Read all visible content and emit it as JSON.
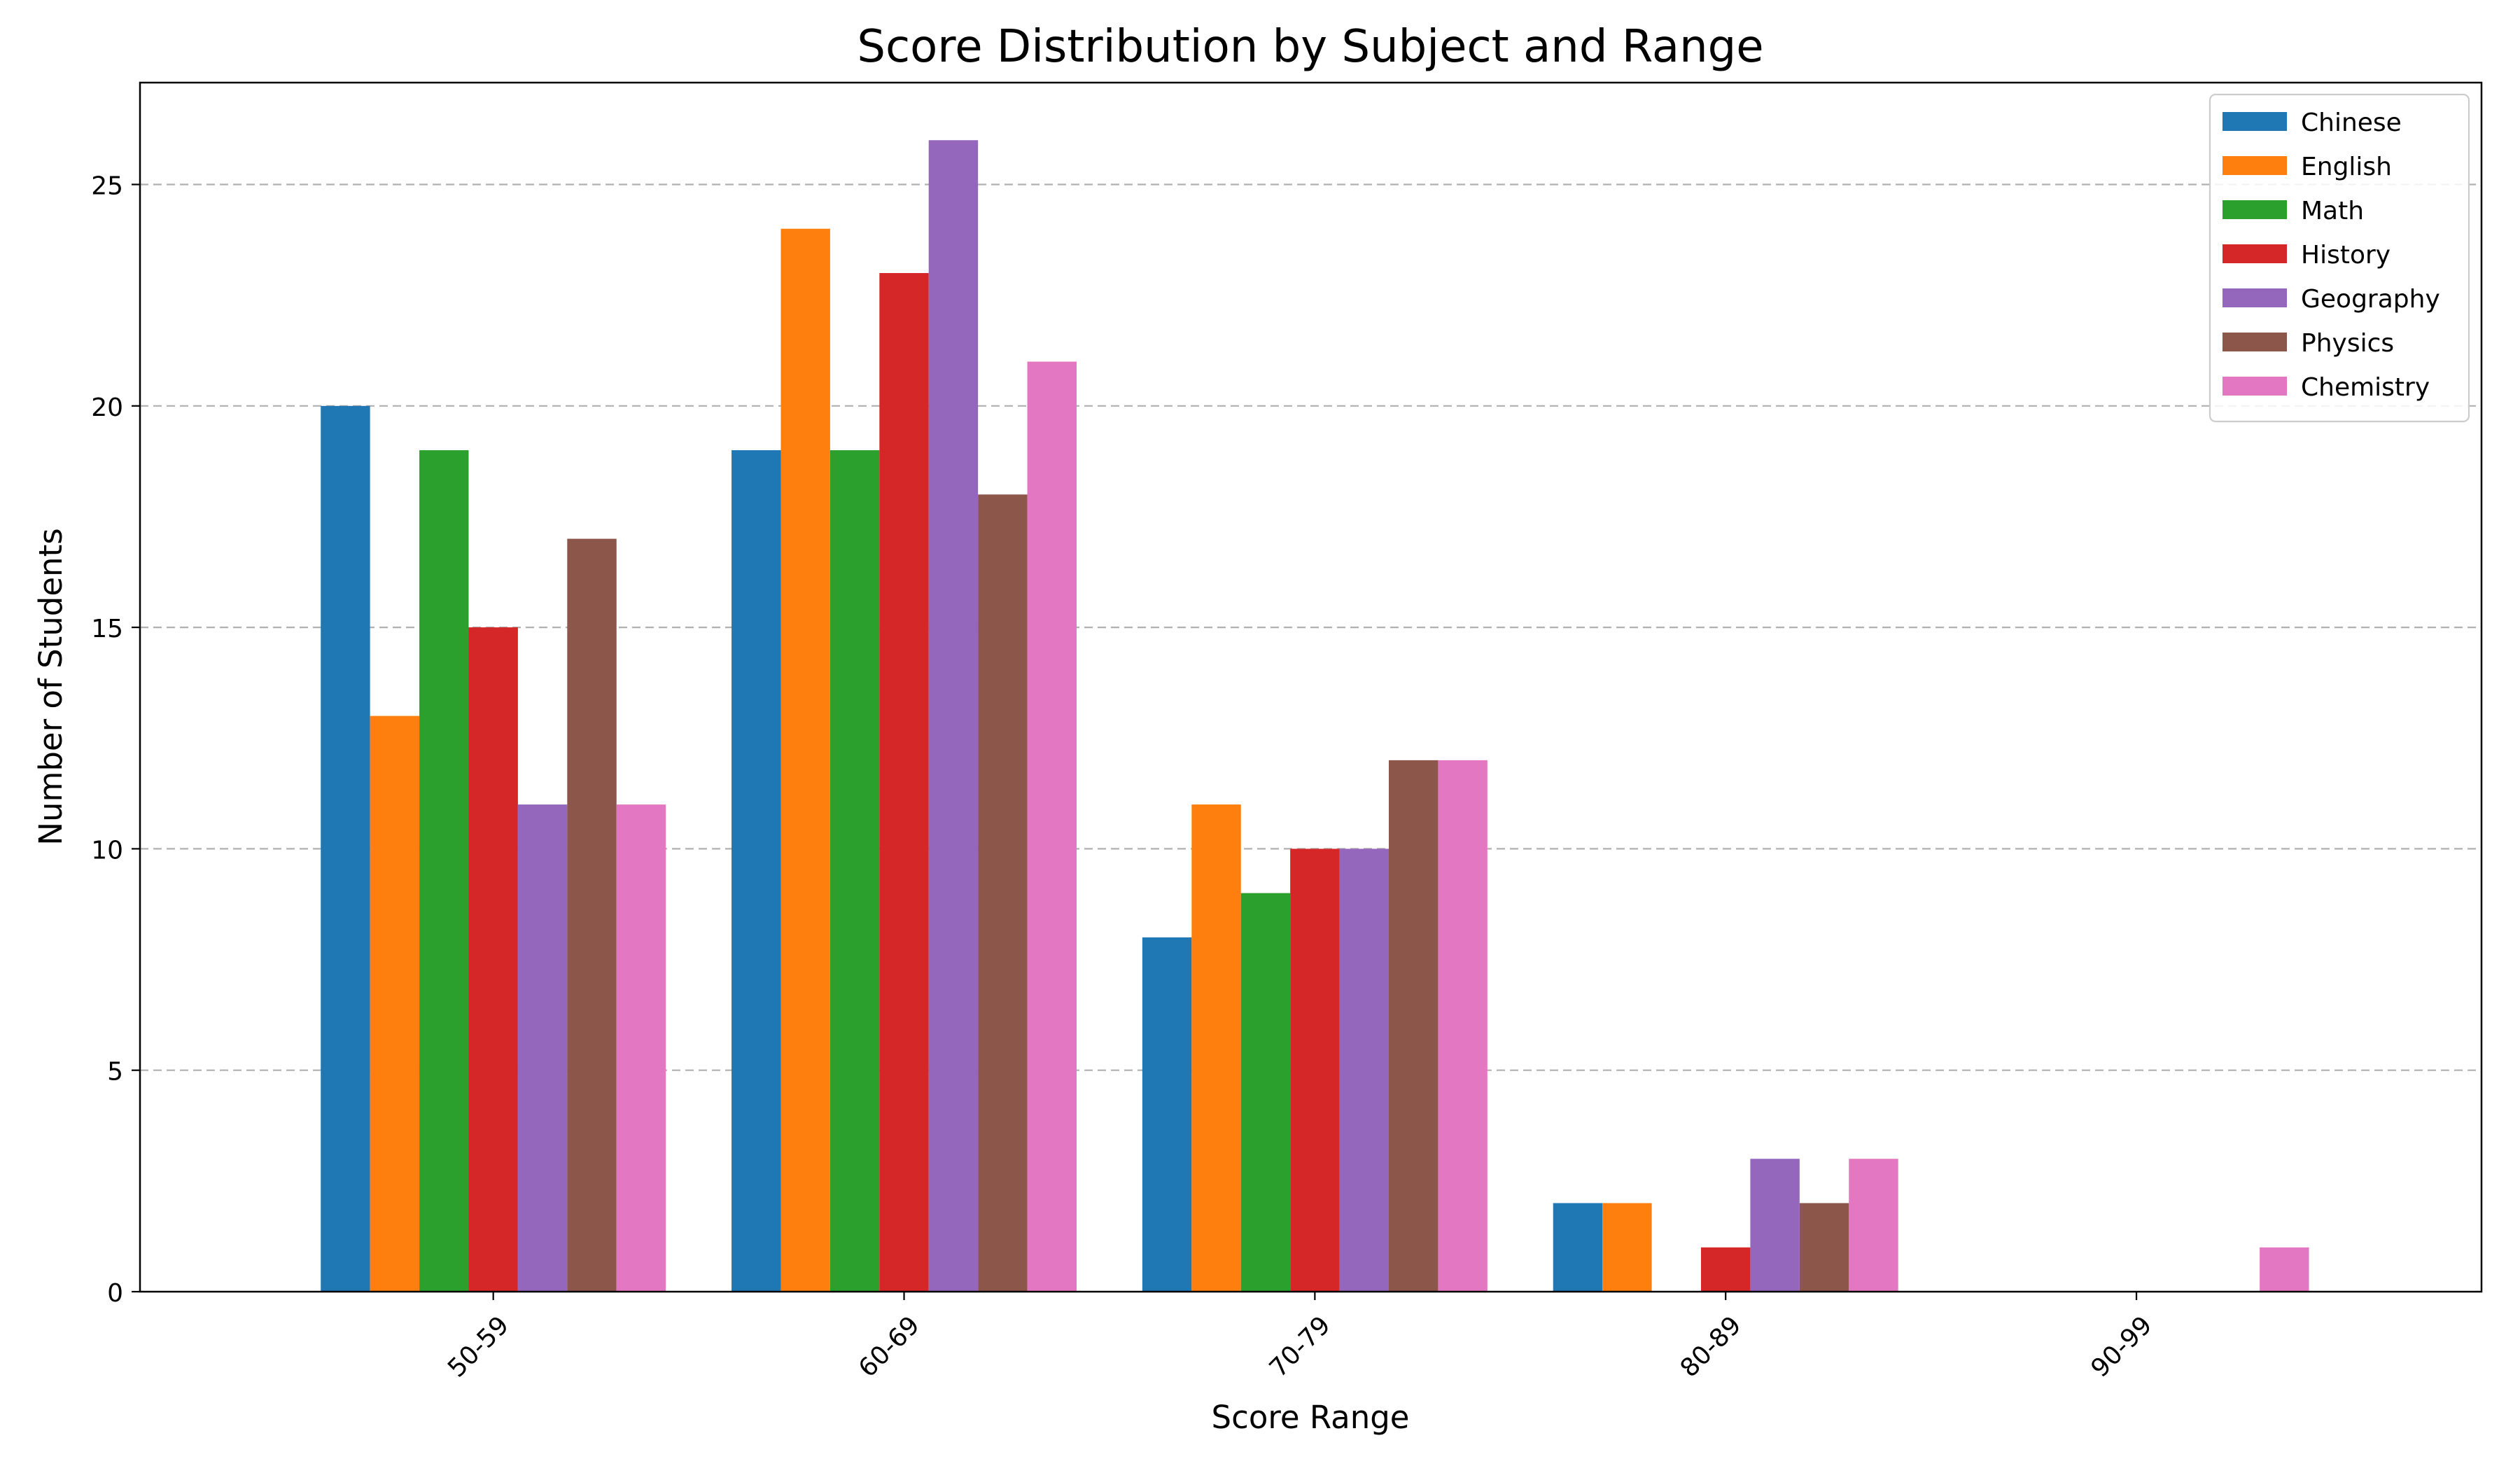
{
  "chart_data": {
    "type": "bar",
    "title": "Score Distribution by Subject and Range",
    "xlabel": "Score Range",
    "ylabel": "Number of Students",
    "categories": [
      "50-59",
      "60-69",
      "70-79",
      "80-89",
      "90-99"
    ],
    "ylim": [
      0,
      27.3
    ],
    "yticks": [
      0,
      5,
      10,
      15,
      20,
      25
    ],
    "grid": "y-dashed",
    "legend_position": "top-right",
    "series": [
      {
        "name": "Chinese",
        "color": "#1f77b4",
        "values": [
          20,
          19,
          8,
          2,
          0
        ]
      },
      {
        "name": "English",
        "color": "#ff7f0e",
        "values": [
          13,
          24,
          11,
          2,
          0
        ]
      },
      {
        "name": "Math",
        "color": "#2ca02c",
        "values": [
          19,
          19,
          9,
          0,
          0
        ]
      },
      {
        "name": "History",
        "color": "#d62728",
        "values": [
          15,
          23,
          10,
          1,
          0
        ]
      },
      {
        "name": "Geography",
        "color": "#9467bd",
        "values": [
          11,
          26,
          10,
          3,
          0
        ]
      },
      {
        "name": "Physics",
        "color": "#8c564b",
        "values": [
          17,
          18,
          12,
          2,
          0
        ]
      },
      {
        "name": "Chemistry",
        "color": "#e377c2",
        "values": [
          11,
          21,
          12,
          3,
          1
        ]
      }
    ]
  }
}
